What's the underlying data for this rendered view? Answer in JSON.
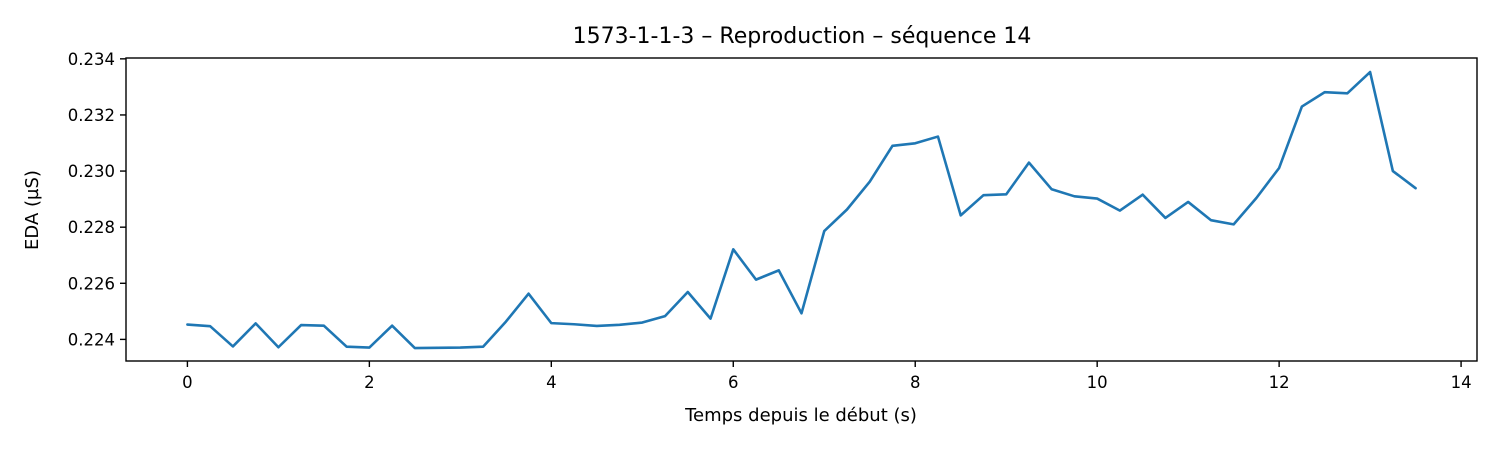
{
  "chart_data": {
    "type": "line",
    "title": "1573-1-1-3 – Reproduction – séquence 14",
    "xlabel": "Temps depuis le début (s)",
    "ylabel": "EDA (µS)",
    "xlim": [
      -0.675,
      14.175
    ],
    "ylim": [
      0.22323,
      0.23403
    ],
    "xticks": [
      0,
      2,
      4,
      6,
      8,
      10,
      12,
      14
    ],
    "yticks": [
      0.224,
      0.226,
      0.228,
      0.23,
      0.232,
      0.234
    ],
    "xtick_labels": [
      "0",
      "2",
      "4",
      "6",
      "8",
      "10",
      "12",
      "14"
    ],
    "ytick_labels": [
      "0.224",
      "0.226",
      "0.228",
      "0.230",
      "0.232",
      "0.234"
    ],
    "grid": false,
    "series": [
      {
        "color": "#1f77b4",
        "x": [
          0,
          0.25,
          0.5,
          0.75,
          1,
          1.25,
          1.5,
          1.75,
          2,
          2.25,
          2.5,
          2.75,
          3,
          3.25,
          3.5,
          3.75,
          4,
          4.25,
          4.5,
          4.75,
          5,
          5.25,
          5.5,
          5.75,
          6,
          6.25,
          6.5,
          6.75,
          7,
          7.25,
          7.5,
          7.75,
          8,
          8.25,
          8.5,
          8.75,
          9,
          9.25,
          9.5,
          9.75,
          10,
          10.25,
          10.5,
          10.75,
          11,
          11.25,
          11.5,
          11.75,
          12,
          12.25,
          12.5,
          12.75,
          13,
          13.25,
          13.5
        ],
        "y": [
          0.22453,
          0.22447,
          0.22375,
          0.22457,
          0.22372,
          0.22451,
          0.22449,
          0.22374,
          0.22371,
          0.22449,
          0.22369,
          0.2237,
          0.22371,
          0.22374,
          0.22463,
          0.22563,
          0.22458,
          0.22454,
          0.22448,
          0.22452,
          0.2246,
          0.22483,
          0.22569,
          0.22474,
          0.22721,
          0.22613,
          0.22646,
          0.22493,
          0.22786,
          0.22863,
          0.22962,
          0.2309,
          0.23099,
          0.23123,
          0.22842,
          0.22914,
          0.22917,
          0.2303,
          0.22935,
          0.2291,
          0.22902,
          0.22859,
          0.22916,
          0.22833,
          0.2289,
          0.22825,
          0.2281,
          0.22904,
          0.23011,
          0.2323,
          0.23281,
          0.23277,
          0.23353,
          0.23,
          0.22939
        ]
      }
    ]
  }
}
